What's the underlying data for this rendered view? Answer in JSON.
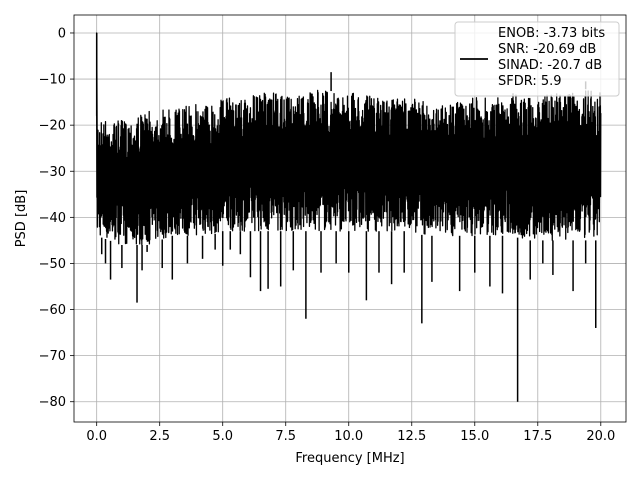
{
  "chart_data": {
    "type": "line",
    "xlabel": "Frequency [MHz]",
    "ylabel": "PSD [dB]",
    "xlim": [
      -0.9,
      21.0
    ],
    "ylim": [
      -84.4,
      3.9
    ],
    "xticks": [
      0.0,
      2.5,
      5.0,
      7.5,
      10.0,
      12.5,
      15.0,
      17.5,
      20.0
    ],
    "xtick_labels": [
      "0.0",
      "2.5",
      "5.0",
      "7.5",
      "10.0",
      "12.5",
      "15.0",
      "17.5",
      "20.0"
    ],
    "yticks": [
      0,
      -10,
      -20,
      -30,
      -40,
      -50,
      -60,
      -70,
      -80
    ],
    "ytick_labels": [
      "0",
      "−10",
      "−20",
      "−30",
      "−40",
      "−50",
      "−60",
      "−70",
      "−80"
    ],
    "grid": true,
    "legend": {
      "placement": "top-right",
      "entries": [
        "ENOB: -3.73 bits",
        "SNR: -20.69 dB",
        "SINAD: -20.7 dB",
        "SFDR: 5.9"
      ]
    },
    "series": [
      {
        "color": "#000000",
        "envelope_x": [
          0.0,
          0.5,
          1.0,
          1.5,
          2.0,
          2.5,
          3.0,
          3.5,
          4.0,
          4.5,
          5.0,
          5.5,
          6.0,
          6.5,
          7.0,
          7.5,
          8.0,
          8.5,
          9.0,
          9.5,
          10.0,
          10.5,
          11.0,
          11.5,
          12.0,
          12.5,
          13.0,
          13.5,
          14.0,
          14.5,
          15.0,
          15.5,
          16.0,
          16.5,
          17.0,
          17.5,
          18.0,
          18.5,
          19.0,
          19.5,
          20.0
        ],
        "envelope_top": [
          -18,
          -19,
          -19,
          -18,
          -17,
          -17,
          -16,
          -16,
          -15,
          -15,
          -14,
          -14,
          -14,
          -13,
          -13,
          -14,
          -13,
          -13,
          -12,
          -13,
          -13,
          -13,
          -14,
          -14,
          -14,
          -14,
          -15,
          -15,
          -15,
          -15,
          -14,
          -14,
          -14,
          -13,
          -14,
          -14,
          -13,
          -13,
          -13,
          -12,
          -13
        ],
        "envelope_bottom": [
          -44,
          -45,
          -46,
          -46,
          -46,
          -45,
          -44,
          -44,
          -44,
          -44,
          -43,
          -43,
          -43,
          -43,
          -43,
          -43,
          -43,
          -43,
          -43,
          -43,
          -43,
          -43,
          -43,
          -43,
          -43,
          -43,
          -44,
          -44,
          -44,
          -44,
          -44,
          -44,
          -44,
          -44,
          -45,
          -45,
          -45,
          -45,
          -45,
          -45,
          -45
        ],
        "peaks": [
          {
            "x": 0.0,
            "y": 0
          },
          {
            "x": 9.3,
            "y": -8.5
          },
          {
            "x": 19.4,
            "y": -10.5
          }
        ],
        "dips": [
          {
            "x": 0.2,
            "y": -48
          },
          {
            "x": 0.35,
            "y": -50
          },
          {
            "x": 0.55,
            "y": -53.5
          },
          {
            "x": 1.0,
            "y": -51
          },
          {
            "x": 1.6,
            "y": -58.5
          },
          {
            "x": 1.8,
            "y": -51.5
          },
          {
            "x": 2.0,
            "y": -47.5
          },
          {
            "x": 2.6,
            "y": -51
          },
          {
            "x": 3.0,
            "y": -53.5
          },
          {
            "x": 3.6,
            "y": -50
          },
          {
            "x": 4.2,
            "y": -49
          },
          {
            "x": 4.7,
            "y": -47
          },
          {
            "x": 5.0,
            "y": -50.5
          },
          {
            "x": 5.3,
            "y": -47
          },
          {
            "x": 5.7,
            "y": -48
          },
          {
            "x": 6.1,
            "y": -53
          },
          {
            "x": 6.5,
            "y": -56
          },
          {
            "x": 6.8,
            "y": -55.5
          },
          {
            "x": 7.3,
            "y": -55
          },
          {
            "x": 7.8,
            "y": -51.5
          },
          {
            "x": 8.3,
            "y": -62
          },
          {
            "x": 8.9,
            "y": -52
          },
          {
            "x": 9.5,
            "y": -50
          },
          {
            "x": 10.0,
            "y": -52
          },
          {
            "x": 10.7,
            "y": -58
          },
          {
            "x": 11.2,
            "y": -52
          },
          {
            "x": 11.7,
            "y": -54.5
          },
          {
            "x": 12.2,
            "y": -52
          },
          {
            "x": 12.9,
            "y": -63
          },
          {
            "x": 13.3,
            "y": -54
          },
          {
            "x": 14.4,
            "y": -56
          },
          {
            "x": 15.0,
            "y": -52
          },
          {
            "x": 15.6,
            "y": -55
          },
          {
            "x": 16.1,
            "y": -56.5
          },
          {
            "x": 16.7,
            "y": -80
          },
          {
            "x": 17.2,
            "y": -53.5
          },
          {
            "x": 17.7,
            "y": -50
          },
          {
            "x": 18.1,
            "y": -52.5
          },
          {
            "x": 18.9,
            "y": -56
          },
          {
            "x": 19.4,
            "y": -50
          },
          {
            "x": 19.8,
            "y": -64
          }
        ]
      }
    ]
  }
}
